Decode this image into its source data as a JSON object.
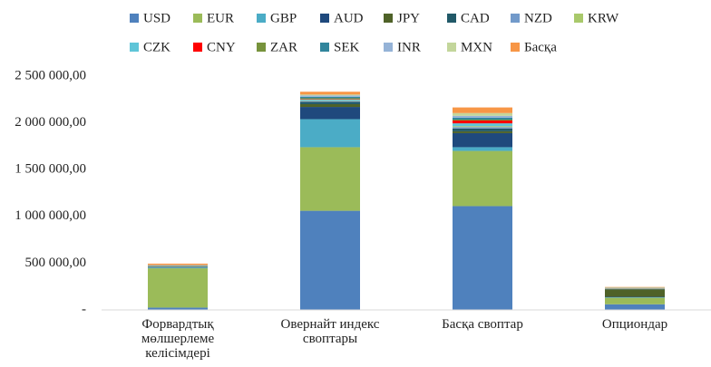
{
  "chart_data": {
    "type": "stacked_bar",
    "categories": [
      "Форвардтық\nмөлшерлеме\nкелісімдері",
      "Овернайт индекс\nсвоптары",
      "Басқа своптар",
      "Опциондар"
    ],
    "series": [
      {
        "name": "USD",
        "color": "#4f81bd",
        "values": [
          25000,
          1060000,
          1110000,
          60000
        ]
      },
      {
        "name": "EUR",
        "color": "#9bbb59",
        "values": [
          420000,
          680000,
          590000,
          70000
        ]
      },
      {
        "name": "GBP",
        "color": "#4bacc6",
        "values": [
          8000,
          300000,
          40000,
          5000
        ]
      },
      {
        "name": "AUD",
        "color": "#1f497d",
        "values": [
          5000,
          130000,
          150000,
          5000
        ]
      },
      {
        "name": "JPY",
        "color": "#4f6228",
        "values": [
          3000,
          30000,
          20000,
          80000
        ]
      },
      {
        "name": "CAD",
        "color": "#215968",
        "values": [
          2000,
          25000,
          30000,
          5000
        ]
      },
      {
        "name": "NZD",
        "color": "#729aca",
        "values": [
          1000,
          10000,
          15000,
          2000
        ]
      },
      {
        "name": "KRW",
        "color": "#a9c96b",
        "values": [
          2000,
          5000,
          10000,
          3000
        ]
      },
      {
        "name": "CZK",
        "color": "#5fc5d8",
        "values": [
          2000,
          10000,
          30000,
          1000
        ]
      },
      {
        "name": "CNY",
        "color": "#ff0000",
        "values": [
          1000,
          3000,
          30000,
          1000
        ]
      },
      {
        "name": "ZAR",
        "color": "#77933c",
        "values": [
          2000,
          10000,
          10000,
          3000
        ]
      },
      {
        "name": "SEK",
        "color": "#31859c",
        "values": [
          5000,
          15000,
          20000,
          1000
        ]
      },
      {
        "name": "INR",
        "color": "#95b3d7",
        "values": [
          2000,
          15000,
          20000,
          1000
        ]
      },
      {
        "name": "MXN",
        "color": "#c3d69b",
        "values": [
          2000,
          10000,
          30000,
          3000
        ]
      },
      {
        "name": "Басқа",
        "color": "#f79646",
        "values": [
          15000,
          30000,
          60000,
          5000
        ]
      }
    ],
    "ylim": [
      0,
      2500000
    ],
    "yticks": [
      {
        "value": 0,
        "label": "-"
      },
      {
        "value": 500000,
        "label": "500 000,00"
      },
      {
        "value": 1000000,
        "label": "1 000 000,00"
      },
      {
        "value": 1500000,
        "label": "1 500 000,00"
      },
      {
        "value": 2000000,
        "label": "2 000 000,00"
      },
      {
        "value": 2500000,
        "label": "2 500 000,00"
      }
    ],
    "grid": false,
    "legend": "top"
  }
}
